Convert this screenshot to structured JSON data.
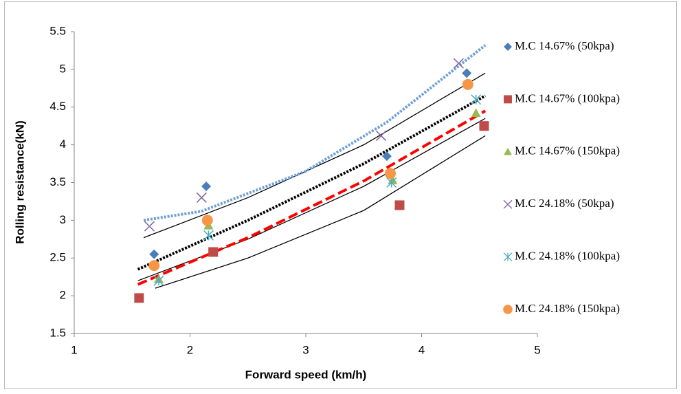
{
  "chart_data": {
    "type": "scatter",
    "x_label": "Forward speed (km/h)",
    "y_label": "Rolling resistance(kN)",
    "xlim": [
      1,
      5
    ],
    "xticks": [
      1,
      2,
      3,
      4,
      5
    ],
    "ylim": [
      1.5,
      5.5
    ],
    "yticks": [
      1.5,
      2,
      2.5,
      3,
      3.5,
      4,
      4.5,
      5,
      5.5
    ],
    "legend": "right",
    "series": [
      {
        "name": "M.C 14.67% (50kpa)",
        "color": "#4a7ebb",
        "marker": "diamond",
        "x": [
          1.69,
          2.14,
          3.7,
          4.39
        ],
        "values": [
          2.55,
          3.45,
          3.85,
          4.95
        ]
      },
      {
        "name": "M.C 14.67% (100kpa)",
        "color": "#be4b48",
        "marker": "square",
        "x": [
          1.56,
          2.2,
          3.81,
          4.54
        ],
        "values": [
          1.97,
          2.58,
          3.2,
          4.25
        ]
      },
      {
        "name": "M.C 14.67% (150kpa)",
        "color": "#98b954",
        "marker": "triangle",
        "x": [
          1.73,
          2.16,
          3.75,
          4.47
        ],
        "values": [
          2.22,
          2.93,
          3.53,
          4.42
        ]
      },
      {
        "name": "M.C 24.18% (50kpa)",
        "color": "#7d5fa0",
        "marker": "x",
        "x": [
          1.65,
          2.1,
          3.65,
          4.32
        ],
        "values": [
          2.92,
          3.3,
          4.12,
          5.08
        ]
      },
      {
        "name": "M.C 24.18% (100kpa)",
        "color": "#4bacc6",
        "marker": "star",
        "x": [
          1.73,
          2.16,
          3.74,
          4.47
        ],
        "values": [
          2.2,
          2.8,
          3.5,
          4.6
        ]
      },
      {
        "name": "M.C 24.18% (150kpa)",
        "color": "#f79646",
        "marker": "circle",
        "x": [
          1.69,
          2.15,
          3.73,
          4.4
        ],
        "values": [
          2.4,
          3.0,
          3.62,
          4.8
        ]
      }
    ],
    "trendlines": [
      {
        "color": "#000000",
        "style": "solid",
        "x": [
          1.6,
          2.5,
          3.5,
          4.55
        ],
        "values": [
          2.77,
          3.3,
          4.0,
          4.95
        ]
      },
      {
        "color": "#000000",
        "style": "solid",
        "x": [
          1.55,
          2.5,
          3.5,
          4.55
        ],
        "values": [
          2.2,
          2.75,
          3.45,
          4.35
        ]
      },
      {
        "color": "#000000",
        "style": "solid",
        "x": [
          1.7,
          2.5,
          3.5,
          4.55
        ],
        "values": [
          2.1,
          2.5,
          3.13,
          4.12
        ]
      },
      {
        "color": "#000000",
        "style": "dotted",
        "x": [
          1.55,
          2.5,
          3.5,
          4.55
        ],
        "values": [
          2.35,
          3.0,
          3.75,
          4.65
        ]
      },
      {
        "color": "#ff0000",
        "style": "dashed",
        "x": [
          1.55,
          2.5,
          3.5,
          4.55
        ],
        "values": [
          2.15,
          2.77,
          3.52,
          4.45
        ]
      },
      {
        "color": "#6f9fd8",
        "style": "dotted",
        "x": [
          1.6,
          2.1,
          3.0,
          3.7,
          4.55
        ],
        "values": [
          3.0,
          3.12,
          3.65,
          4.3,
          5.32
        ]
      }
    ]
  }
}
